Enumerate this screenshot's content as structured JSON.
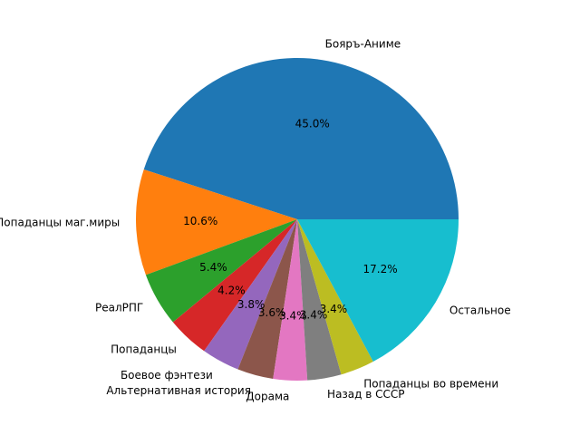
{
  "chart_data": {
    "type": "pie",
    "title": "",
    "labels": [
      "Бояръ-Аниме",
      "Попаданцы маг.миры",
      "РеалРПГ",
      "Попаданцы",
      "Боевое фэнтези",
      "Альтернативная история",
      "Дорама",
      "Назад в СССР",
      "Попаданцы во времени",
      "Остальное"
    ],
    "values": [
      45.0,
      10.6,
      5.4,
      4.2,
      3.8,
      3.6,
      3.4,
      3.4,
      3.4,
      17.2
    ],
    "pct_labels": [
      "45.0%",
      "10.6%",
      "5.4%",
      "4.2%",
      "3.8%",
      "3.6%",
      "3.4%",
      "3.4%",
      "3.4%",
      "17.2%"
    ],
    "colors": [
      "#1f77b4",
      "#ff7f0e",
      "#2ca02c",
      "#d62728",
      "#9467bd",
      "#8c564b",
      "#e377c2",
      "#7f7f7f",
      "#bcbd22",
      "#17becf"
    ],
    "start_angle": 0,
    "direction": "counterclockwise",
    "legend": "none"
  }
}
